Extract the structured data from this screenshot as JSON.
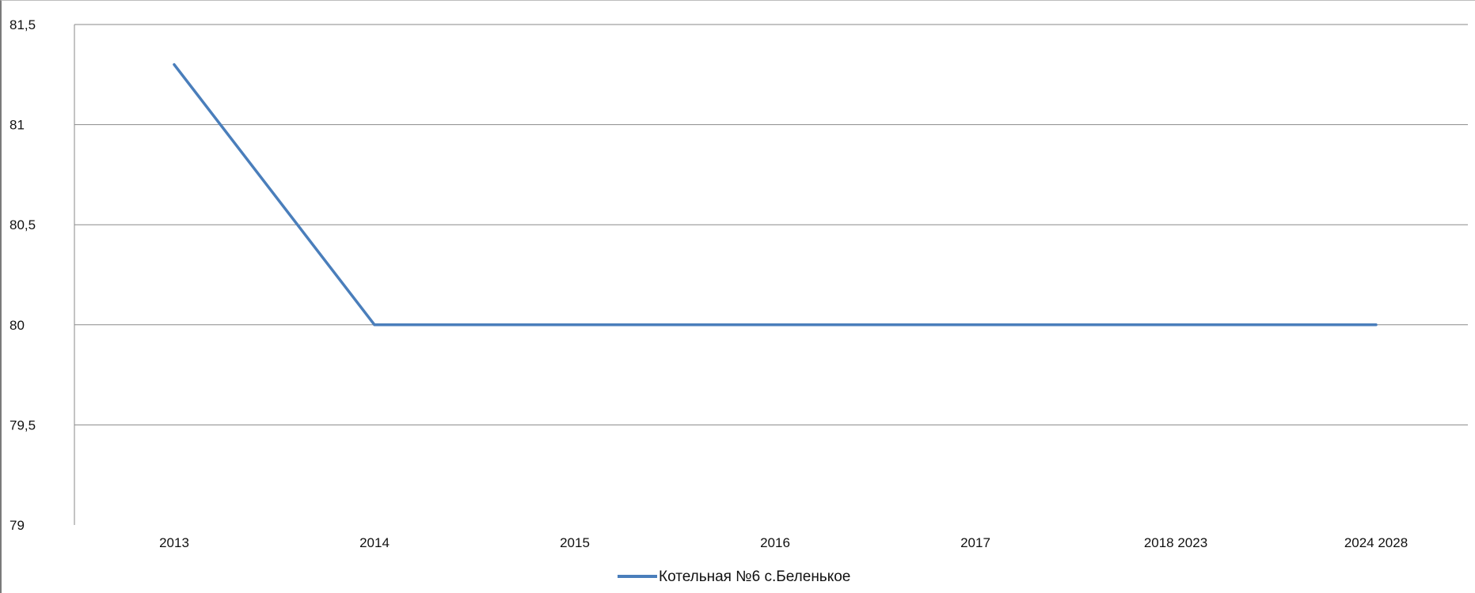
{
  "chart_data": {
    "type": "line",
    "categories": [
      "2013",
      "2014",
      "2015",
      "2016",
      "2017",
      "2018 2023",
      "2024 2028"
    ],
    "series": [
      {
        "name": "Котельная №6 с.Беленькое",
        "values": [
          81.3,
          80,
          80,
          80,
          80,
          80,
          80
        ],
        "color": "#4a7ebb"
      }
    ],
    "ylim": [
      79,
      81.5
    ],
    "yticks": [
      "79",
      "79,5",
      "80",
      "80,5",
      "81",
      "81,5"
    ],
    "ytick_values": [
      79,
      79.5,
      80,
      80.5,
      81,
      81.5
    ],
    "grid": true,
    "legend_position": "bottom",
    "title": "",
    "xlabel": "",
    "ylabel": ""
  }
}
